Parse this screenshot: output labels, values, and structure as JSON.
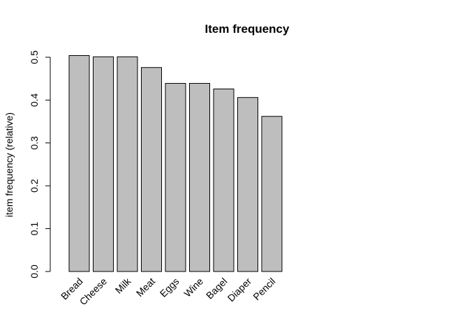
{
  "chart_data": {
    "type": "bar",
    "title": "Item frequency",
    "xlabel": "",
    "ylabel": "item frequency (relative)",
    "categories": [
      "Bread",
      "Cheese",
      "Milk",
      "Meat",
      "Eggs",
      "Wine",
      "Bagel",
      "Diaper",
      "Pencil"
    ],
    "values": [
      0.504,
      0.501,
      0.501,
      0.476,
      0.439,
      0.439,
      0.426,
      0.406,
      0.362
    ],
    "ylim": [
      0,
      0.5
    ],
    "yticks": [
      "0.0",
      "0.1",
      "0.2",
      "0.3",
      "0.4",
      "0.5"
    ],
    "grid": false,
    "colors": {
      "bar_fill": "#bebebe",
      "bar_stroke": "#000000"
    }
  }
}
